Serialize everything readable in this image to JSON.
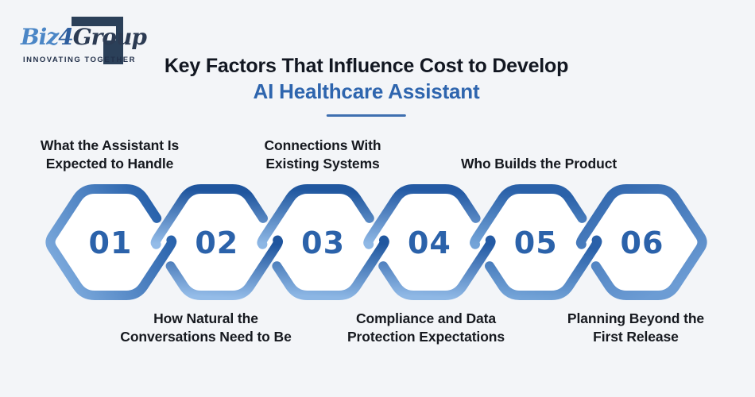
{
  "page": {
    "background": "#F3F5F8"
  },
  "logo": {
    "brand_prefix": "Biz",
    "brand_number": "4",
    "brand_suffix": "Group",
    "tagline": "INNOVATING TOGETHER"
  },
  "header": {
    "title_line1": "Key Factors That Influence Cost to Develop",
    "title_line2": "AI Healthcare Assistant",
    "accent_color": "#2E65AE"
  },
  "diagram": {
    "number_color": "#2B62AA",
    "label_color": "#16191F",
    "steps": [
      {
        "number": "01",
        "label": "What the Assistant Is\nExpected to Handle",
        "label_position": "top"
      },
      {
        "number": "02",
        "label": "How Natural the\nConversations Need to Be",
        "label_position": "bottom"
      },
      {
        "number": "03",
        "label": "Connections With\nExisting Systems",
        "label_position": "top"
      },
      {
        "number": "04",
        "label": "Compliance and Data\nProtection Expectations",
        "label_position": "bottom"
      },
      {
        "number": "05",
        "label": "Who Builds the Product",
        "label_position": "top"
      },
      {
        "number": "06",
        "label": "Planning Beyond the\nFirst Release",
        "label_position": "bottom"
      }
    ],
    "gradients": [
      {
        "from": "#7FACDE",
        "to": "#1F5AA6"
      },
      {
        "from": "#1F559E",
        "to": "#94BCE8"
      },
      {
        "from": "#20579F",
        "to": "#8CB6E4"
      },
      {
        "from": "#245AA4",
        "to": "#8FB8E5"
      },
      {
        "from": "#2A61A9",
        "to": "#74A4D8"
      },
      {
        "from": "#3066AD",
        "to": "#6C9CD4"
      }
    ]
  }
}
